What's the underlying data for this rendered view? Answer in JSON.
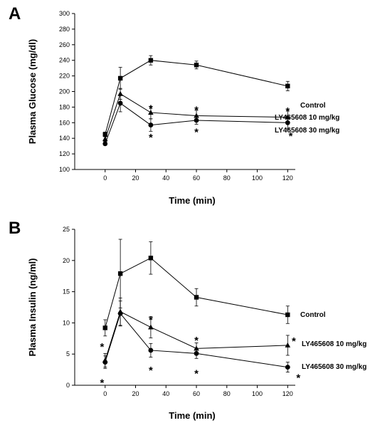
{
  "chart_data": [
    {
      "panel_label": "A",
      "type": "line",
      "xlabel": "Time (min)",
      "ylabel": "Plasma Glucose (mg/dl)",
      "xlim": [
        -20,
        125
      ],
      "ylim": [
        100,
        300
      ],
      "xticks": [
        0,
        20,
        40,
        60,
        80,
        100,
        120
      ],
      "yticks": [
        100,
        120,
        140,
        160,
        180,
        200,
        220,
        240,
        260,
        280,
        300
      ],
      "series": [
        {
          "name": "Control",
          "marker": "square",
          "x": [
            0,
            10,
            30,
            60,
            120
          ],
          "y": [
            145,
            217,
            240,
            234,
            207
          ],
          "err": [
            3,
            14,
            6,
            5,
            6
          ]
        },
        {
          "name": "LY465608 10 mg/kg",
          "marker": "triangle",
          "x": [
            0,
            10,
            30,
            60,
            120
          ],
          "y": [
            139,
            197,
            173,
            169,
            167
          ],
          "err": [
            3,
            7,
            8,
            7,
            8
          ]
        },
        {
          "name": "LY465608 30 mg/kg",
          "marker": "circle",
          "x": [
            0,
            10,
            30,
            60,
            120
          ],
          "y": [
            133,
            185,
            157,
            163,
            160
          ],
          "err": [
            2,
            11,
            8,
            5,
            8
          ]
        }
      ],
      "annotations": [
        {
          "text": "*",
          "x": 30,
          "y": 179
        },
        {
          "text": "*",
          "x": 30,
          "y": 142
        },
        {
          "text": "*",
          "x": 60,
          "y": 177
        },
        {
          "text": "*",
          "x": 60,
          "y": 149
        },
        {
          "text": "*",
          "x": 120,
          "y": 176
        },
        {
          "text": "*",
          "x": 122,
          "y": 144
        }
      ]
    },
    {
      "panel_label": "B",
      "type": "line",
      "xlabel": "Time (min)",
      "ylabel": "Plasma Insulin (ng/ml)",
      "xlim": [
        -20,
        125
      ],
      "ylim": [
        0,
        25
      ],
      "xticks": [
        0,
        20,
        40,
        60,
        80,
        100,
        120
      ],
      "yticks": [
        0,
        5,
        10,
        15,
        20,
        25
      ],
      "series": [
        {
          "name": "Control",
          "marker": "square",
          "x": [
            0,
            10,
            30,
            60,
            120
          ],
          "y": [
            9.2,
            17.9,
            20.4,
            14.1,
            11.3
          ],
          "err": [
            1.3,
            5.5,
            2.6,
            1.4,
            1.4
          ]
        },
        {
          "name": "LY465608 10 mg/kg",
          "marker": "triangle",
          "x": [
            0,
            10,
            30,
            60,
            120
          ],
          "y": [
            4.0,
            11.8,
            9.3,
            5.9,
            6.4
          ],
          "err": [
            1.1,
            2.2,
            1.7,
            0.9,
            1.6
          ]
        },
        {
          "name": "LY465608 30 mg/kg",
          "marker": "circle",
          "x": [
            0,
            10,
            30,
            60,
            120
          ],
          "y": [
            3.7,
            11.5,
            5.6,
            5.1,
            2.9
          ],
          "err": [
            1.0,
            2.0,
            1.1,
            0.8,
            0.8
          ]
        }
      ],
      "annotations": [
        {
          "text": "*",
          "x": -2,
          "y": 6.3
        },
        {
          "text": "*",
          "x": -2,
          "y": 0.5
        },
        {
          "text": "*",
          "x": 30,
          "y": 10.6
        },
        {
          "text": "*",
          "x": 30,
          "y": 2.5
        },
        {
          "text": "*",
          "x": 60,
          "y": 7.3
        },
        {
          "text": "*",
          "x": 60,
          "y": 2.0
        },
        {
          "text": "*",
          "x": 124,
          "y": 7.2
        },
        {
          "text": "*",
          "x": 127,
          "y": 1.3
        }
      ]
    }
  ]
}
